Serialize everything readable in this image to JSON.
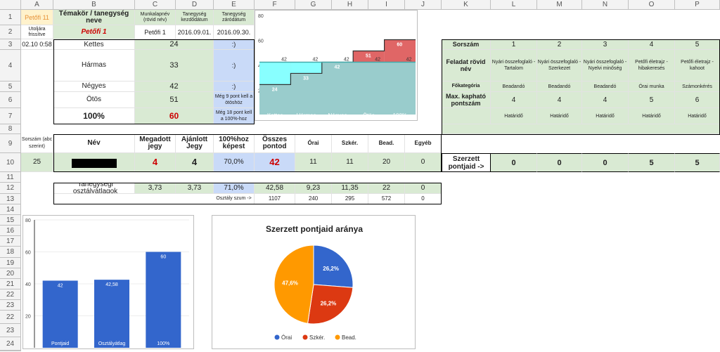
{
  "columns": [
    "A",
    "B",
    "C",
    "D",
    "E",
    "F",
    "G",
    "H",
    "I",
    "J",
    "K",
    "L",
    "M",
    "N",
    "O",
    "P"
  ],
  "rows": [
    "1",
    "2",
    "3",
    "4",
    "5",
    "6",
    "7",
    "8",
    "9",
    "10",
    "11",
    "12",
    "13",
    "14",
    "15",
    "16",
    "17",
    "18",
    "19",
    "20",
    "21",
    "22",
    "23",
    "24"
  ],
  "top": {
    "a1": "Petőfi 11",
    "b1": "Témakör / tanegység neve",
    "c1": "Munkalapnév (rövid név)",
    "d1": "Tanegység kezdődátum",
    "e1": "Tanegység záródátum",
    "a2": "Utoljára frissítve",
    "b2": "Petőfi 1",
    "c2": "Petőfi 1",
    "d2": "2016.09.01.",
    "e2": "2016.09.30.",
    "a3": "02.10 0:58"
  },
  "grades": [
    {
      "name": "Kettes",
      "points": "24",
      "status": ":)"
    },
    {
      "name": "Hármas",
      "points": "33",
      "status": ":)"
    },
    {
      "name": "Négyes",
      "points": "42",
      "status": ":)"
    },
    {
      "name": "Ötös",
      "points": "51",
      "status": "Még 9 pont kell a ötöshöz"
    },
    {
      "name": "100%",
      "points": "60",
      "status": "Még 18 pont kell a 100%-hoz"
    }
  ],
  "step_chart": {
    "y_ticks": [
      "80",
      "60",
      "40",
      "20"
    ],
    "categories": [
      "Kettes",
      "Hármas",
      "Négyes",
      "Ötös",
      "100%"
    ],
    "thresholds": [
      24,
      33,
      42,
      51,
      60
    ],
    "current": [
      42,
      42,
      42,
      42,
      42
    ],
    "labels": [
      "24",
      "33",
      "42",
      "51",
      "60",
      "42",
      "42",
      "42",
      "42",
      "42"
    ]
  },
  "tasks": {
    "header_sorszam": "Sorszám",
    "header_feladat": "Feladat rövid név",
    "header_fokategoria": "Főkategória",
    "header_max": "Max. kapható pontszám",
    "header_szerzett": "Szerzett pontjaid ->",
    "items": [
      {
        "num": "1",
        "name": "Nyári összefoglaló - Tartalom",
        "cat": "Beadandó",
        "max": "4",
        "deadline": "Határidő",
        "earned": "0"
      },
      {
        "num": "2",
        "name": "Nyári összefoglaló - Szerkezet",
        "cat": "Beadandó",
        "max": "4",
        "deadline": "Határidő",
        "earned": "0"
      },
      {
        "num": "3",
        "name": "Nyári összefoglaló - Nyelvi minőség",
        "cat": "Beadandó",
        "max": "4",
        "deadline": "Határidő",
        "earned": "0"
      },
      {
        "num": "4",
        "name": "Petőfi életrajz - hibakeresés",
        "cat": "Órai munka",
        "max": "5",
        "deadline": "Határidő",
        "earned": "5"
      },
      {
        "num": "5",
        "name": "Petőfi életrajz - kahoot",
        "cat": "Számonkérés",
        "max": "6",
        "deadline": "Határidő",
        "earned": "5"
      }
    ]
  },
  "student": {
    "h_sorszam": "Sorszám (abc szerint)",
    "h_nev": "Név",
    "h_megadott": "Megadott jegy",
    "h_ajanlott": "Ajánlott Jegy",
    "h_szazalek": "100%hoz képest",
    "h_osszes": "Összes pontod",
    "h_orai": "Órai",
    "h_szker": "Szkér.",
    "h_bead": "Bead.",
    "h_egyeb": "Egyéb",
    "sorszam": "25",
    "megadott": "4",
    "ajanlott": "4",
    "szazalek": "70,0%",
    "osszes": "42",
    "orai": "11",
    "szker": "11",
    "bead": "20",
    "egyeb": "0"
  },
  "averages": {
    "label": "Tanegységi osztályátlagok",
    "megadott": "3,73",
    "ajanlott": "3,73",
    "szazalek": "71,0%",
    "osszes": "42,58",
    "orai": "9,23",
    "szker": "11,35",
    "bead": "22",
    "egyeb": "0",
    "sum_label": "Osztály szum ->",
    "sum_osszes": "1107",
    "sum_orai": "240",
    "sum_szker": "295",
    "sum_bead": "572",
    "sum_egyeb": "0"
  },
  "bar_chart": {
    "type": "bar",
    "categories": [
      "Pontjaid",
      "Osztályátlag",
      "100%"
    ],
    "values": [
      42,
      42.58,
      60
    ],
    "value_labels": [
      "42",
      "42,58",
      "60"
    ],
    "y_ticks": [
      "80",
      "60",
      "40",
      "20"
    ],
    "ylim": [
      0,
      80
    ],
    "color": "#3366cc"
  },
  "chart_data": {
    "type": "pie",
    "title": "Szerzett pontjaid aránya",
    "categories": [
      "Órai",
      "Szkér.",
      "Bead."
    ],
    "values": [
      26.2,
      26.2,
      47.6
    ],
    "labels": [
      "26,2%",
      "26,2%",
      "47,6%"
    ],
    "colors": [
      "#3366cc",
      "#dc3912",
      "#ff9900"
    ]
  }
}
